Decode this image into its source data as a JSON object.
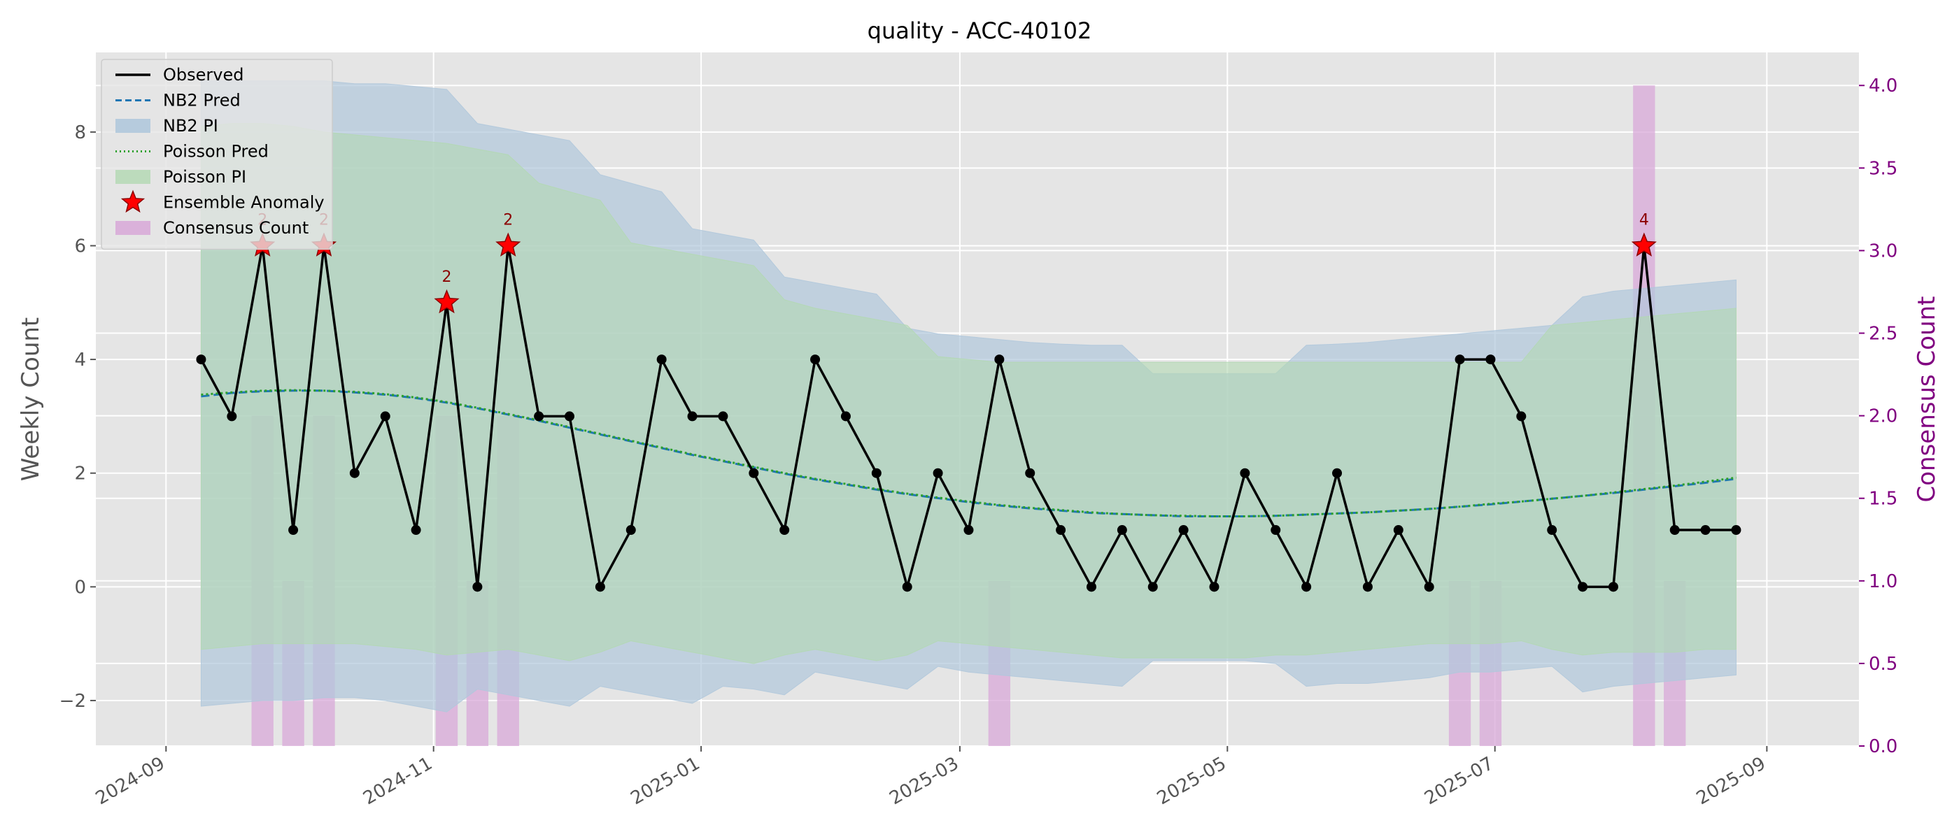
{
  "chart_data": {
    "type": "line",
    "title": "quality - ACC-40102",
    "xlabel": "",
    "ylabel": "Weekly Count",
    "y2label": "Consensus Count",
    "xlim": [
      "2024-08-16",
      "2025-09-22"
    ],
    "ylim": [
      -2.8,
      9.4
    ],
    "y2lim": [
      0,
      4.2
    ],
    "x_ticks": [
      "2024-09-01",
      "2024-11-01",
      "2025-01-01",
      "2025-03-01",
      "2025-05-01",
      "2025-07-01",
      "2025-09-01"
    ],
    "x_tick_labels": [
      "2024-09",
      "2024-11",
      "2025-01",
      "2025-03",
      "2025-05",
      "2025-07",
      "2025-09"
    ],
    "y_ticks": [
      -2,
      0,
      2,
      4,
      6,
      8
    ],
    "y_tick_labels": [
      "−2",
      "0",
      "2",
      "4",
      "6",
      "8"
    ],
    "y2_ticks": [
      0,
      0.5,
      1,
      1.5,
      2,
      2.5,
      3,
      3.5,
      4
    ],
    "y2_tick_labels": [
      "0.0",
      "0.5",
      "1.0",
      "1.5",
      "2.0",
      "2.5",
      "3.0",
      "3.5",
      "4.0"
    ],
    "grid": true,
    "legend_position": "top-left",
    "legend": [
      {
        "key": "observed",
        "label": "Observed"
      },
      {
        "key": "nb2_pred",
        "label": "NB2 Pred"
      },
      {
        "key": "nb2_pi",
        "label": "NB2 PI"
      },
      {
        "key": "poisson_pred",
        "label": "Poisson Pred"
      },
      {
        "key": "poisson_pi",
        "label": "Poisson PI"
      },
      {
        "key": "anomaly",
        "label": "Ensemble Anomaly"
      },
      {
        "key": "consensus",
        "label": "Consensus Count"
      }
    ],
    "colors": {
      "observed": "#000000",
      "nb2_pred": "#1f77b4",
      "nb2_pi": "#b0c8dc",
      "poisson_pred": "#2ca02c",
      "poisson_pi": "#b2d8b2",
      "anomaly": "#ff0000",
      "consensus": "#d8a8d8",
      "plot_bg": "#e5e5e5",
      "grid": "#ffffff",
      "right_axis": "#800080"
    },
    "dates": [
      "2024-09-09",
      "2024-09-16",
      "2024-09-23",
      "2024-09-30",
      "2024-10-07",
      "2024-10-14",
      "2024-10-21",
      "2024-10-28",
      "2024-11-04",
      "2024-11-11",
      "2024-11-18",
      "2024-11-25",
      "2024-12-02",
      "2024-12-09",
      "2024-12-16",
      "2024-12-23",
      "2024-12-30",
      "2025-01-06",
      "2025-01-13",
      "2025-01-20",
      "2025-01-27",
      "2025-02-03",
      "2025-02-10",
      "2025-02-17",
      "2025-02-24",
      "2025-03-03",
      "2025-03-10",
      "2025-03-17",
      "2025-03-24",
      "2025-03-31",
      "2025-04-07",
      "2025-04-14",
      "2025-04-21",
      "2025-04-28",
      "2025-05-05",
      "2025-05-12",
      "2025-05-19",
      "2025-05-26",
      "2025-06-02",
      "2025-06-09",
      "2025-06-16",
      "2025-06-23",
      "2025-06-30",
      "2025-07-07",
      "2025-07-14",
      "2025-07-21",
      "2025-07-28",
      "2025-08-04",
      "2025-08-11",
      "2025-08-18",
      "2025-08-25"
    ],
    "series": [
      {
        "key": "observed",
        "name": "Observed",
        "values": [
          4,
          3,
          6,
          1,
          6,
          2,
          3,
          1,
          5,
          0,
          6,
          3,
          3,
          0,
          1,
          4,
          3,
          3,
          2,
          1,
          4,
          3,
          2,
          0,
          2,
          1,
          4,
          2,
          1,
          0,
          1,
          0,
          1,
          0,
          2,
          1,
          0,
          2,
          0,
          1,
          0,
          4,
          4,
          3,
          1,
          0,
          0,
          6,
          1,
          1,
          1
        ]
      },
      {
        "key": "nb2_pred",
        "name": "NB2 Pred",
        "values": [
          3.35,
          3.41,
          3.44,
          3.45,
          3.45,
          3.42,
          3.38,
          3.32,
          3.24,
          3.14,
          3.03,
          2.92,
          2.8,
          2.68,
          2.56,
          2.44,
          2.32,
          2.21,
          2.1,
          1.99,
          1.89,
          1.8,
          1.71,
          1.63,
          1.56,
          1.49,
          1.43,
          1.38,
          1.34,
          1.3,
          1.28,
          1.26,
          1.24,
          1.24,
          1.24,
          1.25,
          1.27,
          1.29,
          1.31,
          1.34,
          1.37,
          1.41,
          1.45,
          1.5,
          1.55,
          1.6,
          1.65,
          1.71,
          1.77,
          1.83,
          1.9
        ]
      },
      {
        "key": "poisson_pred",
        "name": "Poisson Pred",
        "values": [
          3.38,
          3.42,
          3.45,
          3.46,
          3.45,
          3.43,
          3.39,
          3.33,
          3.25,
          3.15,
          3.04,
          2.93,
          2.81,
          2.69,
          2.57,
          2.45,
          2.33,
          2.22,
          2.11,
          2.0,
          1.9,
          1.81,
          1.72,
          1.64,
          1.57,
          1.5,
          1.44,
          1.39,
          1.35,
          1.31,
          1.28,
          1.26,
          1.25,
          1.24,
          1.24,
          1.25,
          1.27,
          1.29,
          1.31,
          1.34,
          1.37,
          1.41,
          1.46,
          1.5,
          1.55,
          1.6,
          1.66,
          1.72,
          1.78,
          1.85,
          1.92
        ]
      }
    ],
    "nb2_pi": {
      "lower": [
        -2.1,
        -2.05,
        -2.0,
        -2.0,
        -1.95,
        -1.95,
        -2.0,
        -2.1,
        -2.2,
        -1.8,
        -1.9,
        -2.0,
        -2.1,
        -1.75,
        -1.85,
        -1.95,
        -2.05,
        -1.75,
        -1.8,
        -1.9,
        -1.5,
        -1.6,
        -1.7,
        -1.8,
        -1.4,
        -1.5,
        -1.55,
        -1.6,
        -1.65,
        -1.7,
        -1.75,
        -1.3,
        -1.3,
        -1.3,
        -1.3,
        -1.35,
        -1.75,
        -1.7,
        -1.7,
        -1.65,
        -1.6,
        -1.5,
        -1.5,
        -1.45,
        -1.4,
        -1.85,
        -1.75,
        -1.7,
        -1.65,
        -1.6,
        -1.55
      ],
      "upper": [
        8.9,
        8.9,
        8.9,
        8.9,
        8.9,
        8.85,
        8.85,
        8.8,
        8.75,
        8.15,
        8.05,
        7.95,
        7.85,
        7.25,
        7.1,
        6.95,
        6.3,
        6.2,
        6.1,
        5.45,
        5.35,
        5.25,
        5.15,
        4.55,
        4.45,
        4.4,
        4.35,
        4.3,
        4.27,
        4.25,
        4.25,
        3.75,
        3.75,
        3.75,
        3.75,
        3.75,
        4.25,
        4.27,
        4.3,
        4.35,
        4.4,
        4.45,
        4.5,
        4.55,
        4.6,
        5.1,
        5.2,
        5.25,
        5.3,
        5.35,
        5.4
      ]
    },
    "poisson_pi": {
      "lower": [
        -1.1,
        -1.05,
        -1.0,
        -1.0,
        -1.0,
        -1.0,
        -1.05,
        -1.1,
        -1.2,
        -1.15,
        -1.1,
        -1.2,
        -1.3,
        -1.15,
        -0.95,
        -1.05,
        -1.15,
        -1.25,
        -1.35,
        -1.2,
        -1.1,
        -1.2,
        -1.3,
        -1.2,
        -0.95,
        -1.0,
        -1.05,
        -1.1,
        -1.15,
        -1.2,
        -1.25,
        -1.25,
        -1.25,
        -1.25,
        -1.25,
        -1.2,
        -1.2,
        -1.15,
        -1.1,
        -1.05,
        -1.0,
        -1.0,
        -1.0,
        -0.95,
        -1.1,
        -1.2,
        -1.15,
        -1.15,
        -1.15,
        -1.1,
        -1.1
      ],
      "upper": [
        8.1,
        8.15,
        8.15,
        8.1,
        8.0,
        7.95,
        7.9,
        7.85,
        7.8,
        7.7,
        7.6,
        7.1,
        6.95,
        6.8,
        6.05,
        5.95,
        5.85,
        5.75,
        5.65,
        5.05,
        4.9,
        4.8,
        4.7,
        4.6,
        4.05,
        4.0,
        3.95,
        3.95,
        3.95,
        3.95,
        3.95,
        3.95,
        3.95,
        3.95,
        3.95,
        3.95,
        3.95,
        3.95,
        3.95,
        3.95,
        3.95,
        3.95,
        3.95,
        3.95,
        4.6,
        4.65,
        4.7,
        4.75,
        4.8,
        4.85,
        4.9
      ]
    },
    "anomalies": [
      {
        "date": "2024-09-23",
        "value": 6,
        "label": "2"
      },
      {
        "date": "2024-10-07",
        "value": 6,
        "label": "2"
      },
      {
        "date": "2024-11-04",
        "value": 5,
        "label": "2"
      },
      {
        "date": "2024-11-18",
        "value": 6,
        "label": "2"
      },
      {
        "date": "2025-08-04",
        "value": 6,
        "label": "4"
      }
    ],
    "consensus": [
      {
        "date": "2024-09-23",
        "value": 2
      },
      {
        "date": "2024-09-30",
        "value": 1
      },
      {
        "date": "2024-10-07",
        "value": 2
      },
      {
        "date": "2024-11-04",
        "value": 2
      },
      {
        "date": "2024-11-11",
        "value": 1
      },
      {
        "date": "2024-11-18",
        "value": 2
      },
      {
        "date": "2025-03-10",
        "value": 1
      },
      {
        "date": "2025-06-23",
        "value": 1
      },
      {
        "date": "2025-06-30",
        "value": 1
      },
      {
        "date": "2025-08-04",
        "value": 4
      },
      {
        "date": "2025-08-11",
        "value": 1
      }
    ]
  }
}
